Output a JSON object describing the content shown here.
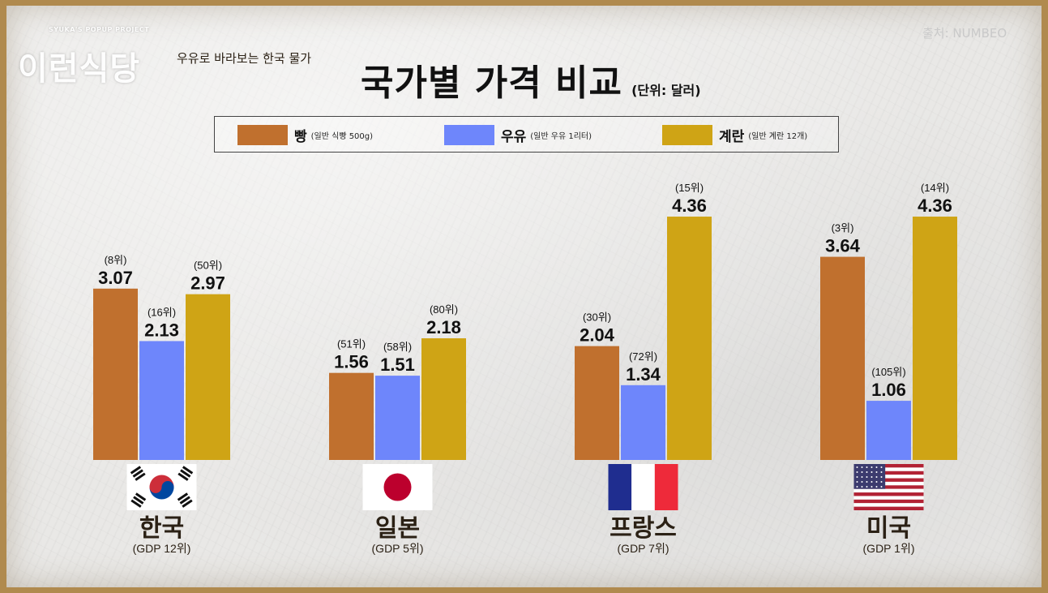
{
  "brand": {
    "tagline": "SYUKA'S POPUP PROJECT",
    "name": "이런식당"
  },
  "subtitle": "우유로 바라보는 한국 물가",
  "title": "국가별 가격 비교",
  "unit": "(단위: 달러)",
  "source": "출처: NUMBEO",
  "colors": {
    "bread": "#c0702e",
    "milk": "#6e86fb",
    "eggs": "#cfa415"
  },
  "legend": [
    {
      "label": "빵",
      "note": "(일반 식빵 500g)",
      "color": "#c0702e"
    },
    {
      "label": "우유",
      "note": "(일반 우유 1리터)",
      "color": "#6e86fb"
    },
    {
      "label": "계란",
      "note": "(일반 계란 12개)",
      "color": "#cfa415"
    }
  ],
  "chart_data": {
    "type": "bar",
    "categories": [
      "한국",
      "일본",
      "프랑스",
      "미국"
    ],
    "category_notes": [
      "(GDP 12위)",
      "(GDP 5위)",
      "(GDP 7위)",
      "(GDP 1위)"
    ],
    "flags": [
      "korea-flag-icon",
      "japan-flag-icon",
      "france-flag-icon",
      "usa-flag-icon"
    ],
    "series": [
      {
        "name": "빵",
        "values": [
          3.07,
          1.56,
          2.04,
          3.64
        ],
        "labels": [
          "3.07",
          "1.56",
          "2.04",
          "3.64"
        ],
        "ranks": [
          "(8위)",
          "(51위)",
          "(30위)",
          "(3위)"
        ]
      },
      {
        "name": "우유",
        "values": [
          2.13,
          1.51,
          1.34,
          1.06
        ],
        "labels": [
          "2.13",
          "1.51",
          "1.34",
          "1.06"
        ],
        "ranks": [
          "(16위)",
          "(58위)",
          "(72위)",
          "(105위)"
        ]
      },
      {
        "name": "계란",
        "values": [
          2.97,
          2.18,
          4.36,
          4.36
        ],
        "labels": [
          "2.97",
          "2.18",
          "4.36",
          "4.36"
        ],
        "ranks": [
          "(50위)",
          "(80위)",
          "(15위)",
          "(14위)"
        ]
      }
    ],
    "ylim": [
      0,
      5
    ],
    "grid": false,
    "legend_position": "top"
  }
}
